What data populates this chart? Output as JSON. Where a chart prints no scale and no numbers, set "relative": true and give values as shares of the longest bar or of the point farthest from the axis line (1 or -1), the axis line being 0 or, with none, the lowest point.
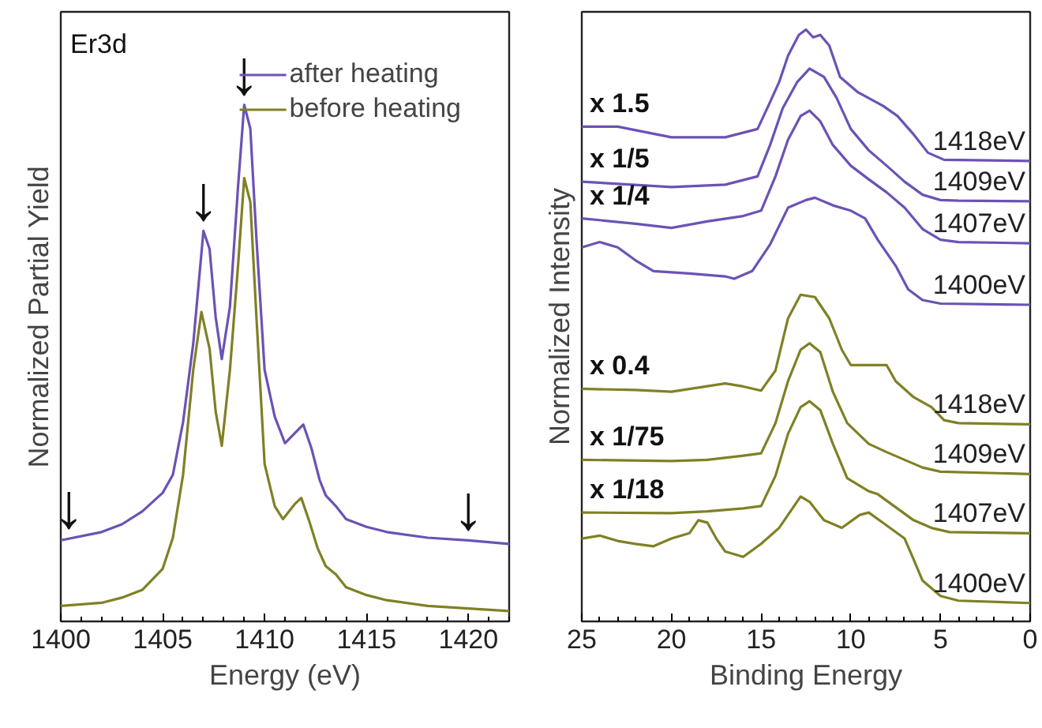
{
  "chart_data": [
    {
      "type": "line",
      "relative": true,
      "xlabel": "Energy (eV)",
      "ylabel": "Normalized Partial Yield",
      "xlim": [
        1400,
        1422
      ],
      "xticks": [
        1400,
        1405,
        1410,
        1415,
        1420
      ],
      "tick_labels": "x",
      "grid": false,
      "legend": "top right",
      "x": [
        1400,
        1402,
        1403,
        1404,
        1405,
        1405.5,
        1406,
        1406.5,
        1407,
        1407.3,
        1407.6,
        1407.9,
        1408.3,
        1408.7,
        1409,
        1409.3,
        1409.6,
        1410,
        1410.5,
        1411,
        1411.5,
        1411.9,
        1412.3,
        1412.7,
        1413,
        1413.5,
        1414,
        1415,
        1416,
        1418,
        1420,
        1422
      ],
      "annotations": [
        "Er3d",
        {
          "text": "↓",
          "x": 1400.4,
          "y": 0.16
        },
        {
          "text": "↓",
          "x": 1407,
          "y": 0.756
        },
        {
          "text": "↓",
          "x": 1409,
          "y": 1.0
        },
        {
          "text": "↓",
          "x": 1420,
          "y": 0.157
        }
      ],
      "series": [
        {
          "name": "after heating",
          "color": "#6b52b5",
          "values": [
            0.157,
            0.173,
            0.188,
            0.213,
            0.249,
            0.284,
            0.386,
            0.538,
            0.756,
            0.721,
            0.589,
            0.508,
            0.609,
            0.843,
            1.0,
            0.954,
            0.741,
            0.487,
            0.396,
            0.345,
            0.365,
            0.381,
            0.335,
            0.274,
            0.244,
            0.223,
            0.198,
            0.183,
            0.173,
            0.162,
            0.157,
            0.15
          ]
        },
        {
          "name": "before heating",
          "color": "#808026",
          "x": [
            1400,
            1402,
            1403,
            1404,
            1405,
            1405.5,
            1406,
            1406.5,
            1406.9,
            1407.3,
            1407.6,
            1407.9,
            1408.3,
            1408.7,
            1409,
            1409.3,
            1409.6,
            1410,
            1410.5,
            1410.9,
            1411.5,
            1411.8,
            1412.2,
            1412.6,
            1413,
            1413.5,
            1414,
            1415,
            1416,
            1418,
            1420,
            1422
          ],
          "values": [
            0.03,
            0.036,
            0.046,
            0.061,
            0.102,
            0.162,
            0.284,
            0.487,
            0.599,
            0.528,
            0.406,
            0.34,
            0.487,
            0.69,
            0.858,
            0.812,
            0.589,
            0.305,
            0.223,
            0.198,
            0.228,
            0.239,
            0.193,
            0.142,
            0.107,
            0.091,
            0.066,
            0.051,
            0.041,
            0.03,
            0.025,
            0.02
          ]
        }
      ]
    },
    {
      "type": "line",
      "relative": true,
      "xlabel": "Binding Energy",
      "ylabel": "Normalized Intensity",
      "xlim": [
        25,
        0
      ],
      "xticks": [
        25,
        20,
        15,
        10,
        5,
        0
      ],
      "tick_labels": "x",
      "grid": false,
      "legend": false,
      "annotations": [
        "x 1.5",
        "x 1/5",
        "x 1/4",
        "x 0.4",
        "x 1/75",
        "x 1/18"
      ],
      "series": [
        {
          "name": "1418eV",
          "color": "#6b52b5",
          "x": [
            25,
            23,
            20,
            17,
            15.2,
            14.6,
            14,
            13.5,
            12.9,
            12.5,
            12.1,
            11.7,
            11.2,
            10.6,
            9.6,
            8.2,
            7.4,
            6.5,
            5.7,
            4.8,
            0
          ],
          "values": [
            0.836,
            0.836,
            0.818,
            0.818,
            0.832,
            0.871,
            0.911,
            0.956,
            0.991,
            1.0,
            0.987,
            0.991,
            0.973,
            0.92,
            0.894,
            0.871,
            0.854,
            0.823,
            0.792,
            0.78,
            0.778
          ]
        },
        {
          "name": "1409eV",
          "color": "#6b52b5",
          "x": [
            25,
            20,
            17,
            15.2,
            14.5,
            13.8,
            13,
            12.3,
            11.5,
            10.8,
            10,
            9,
            8,
            7,
            6,
            5,
            4,
            0
          ],
          "values": [
            0.743,
            0.734,
            0.738,
            0.752,
            0.805,
            0.867,
            0.911,
            0.934,
            0.92,
            0.885,
            0.832,
            0.796,
            0.77,
            0.743,
            0.721,
            0.712,
            0.711,
            0.71
          ]
        },
        {
          "name": "1407eV",
          "color": "#6b52b5",
          "x": [
            25,
            22,
            20,
            18,
            16,
            15,
            14.2,
            13.5,
            12.8,
            12.3,
            11.7,
            11,
            10,
            9,
            8,
            7,
            6,
            5,
            4,
            0
          ],
          "values": [
            0.681,
            0.672,
            0.665,
            0.676,
            0.685,
            0.694,
            0.752,
            0.814,
            0.854,
            0.863,
            0.845,
            0.805,
            0.77,
            0.747,
            0.725,
            0.699,
            0.663,
            0.645,
            0.641,
            0.639
          ]
        },
        {
          "name": "1400eV",
          "color": "#6b52b5",
          "x": [
            25,
            24,
            23,
            22,
            21,
            19,
            17,
            16.5,
            15.5,
            14.5,
            13.5,
            12.5,
            12,
            11,
            10,
            9.2,
            8.5,
            7.5,
            6.8,
            6,
            5,
            0
          ],
          "values": [
            0.632,
            0.641,
            0.632,
            0.61,
            0.592,
            0.588,
            0.583,
            0.579,
            0.592,
            0.637,
            0.699,
            0.712,
            0.716,
            0.703,
            0.694,
            0.681,
            0.645,
            0.601,
            0.561,
            0.543,
            0.537,
            0.535
          ]
        },
        {
          "name": "1418eV",
          "color": "#808026",
          "x": [
            25,
            22,
            20,
            17,
            16,
            15,
            14.2,
            13.5,
            12.8,
            12,
            11.2,
            10.5,
            10,
            9,
            8,
            7.5,
            6.5,
            5.5,
            4.8,
            4,
            0
          ],
          "values": [
            0.393,
            0.391,
            0.388,
            0.402,
            0.397,
            0.39,
            0.424,
            0.512,
            0.552,
            0.548,
            0.512,
            0.459,
            0.433,
            0.433,
            0.433,
            0.406,
            0.379,
            0.362,
            0.34,
            0.335,
            0.333
          ]
        },
        {
          "name": "1409eV",
          "color": "#808026",
          "x": [
            25,
            20,
            18,
            16,
            15,
            14.2,
            13.5,
            12.8,
            12.3,
            11.7,
            11,
            10.2,
            9,
            8,
            7,
            6,
            5,
            0
          ],
          "values": [
            0.273,
            0.271,
            0.273,
            0.28,
            0.284,
            0.335,
            0.406,
            0.459,
            0.47,
            0.455,
            0.388,
            0.335,
            0.3,
            0.286,
            0.273,
            0.26,
            0.253,
            0.249
          ]
        },
        {
          "name": "1407eV",
          "color": "#808026",
          "x": [
            25,
            20,
            18,
            16,
            15,
            14.2,
            13.5,
            12.8,
            12.3,
            11.7,
            11,
            10.2,
            9,
            8.5,
            7.5,
            6.5,
            5.5,
            4.5,
            0
          ],
          "values": [
            0.184,
            0.183,
            0.186,
            0.191,
            0.195,
            0.246,
            0.317,
            0.362,
            0.372,
            0.357,
            0.3,
            0.242,
            0.22,
            0.215,
            0.193,
            0.171,
            0.158,
            0.151,
            0.149
          ]
        },
        {
          "name": "1400eV",
          "color": "#808026",
          "x": [
            25,
            24,
            23,
            22,
            21,
            20,
            19,
            18.5,
            18,
            17.5,
            17,
            16,
            15,
            14,
            13.5,
            12.8,
            12.3,
            11.5,
            10.5,
            9.5,
            9,
            8,
            7,
            6.5,
            6,
            5,
            4,
            0
          ],
          "values": [
            0.14,
            0.145,
            0.136,
            0.131,
            0.127,
            0.14,
            0.149,
            0.171,
            0.167,
            0.14,
            0.118,
            0.109,
            0.131,
            0.158,
            0.18,
            0.211,
            0.202,
            0.171,
            0.158,
            0.18,
            0.184,
            0.162,
            0.14,
            0.105,
            0.069,
            0.043,
            0.035,
            0.031
          ]
        }
      ]
    }
  ]
}
